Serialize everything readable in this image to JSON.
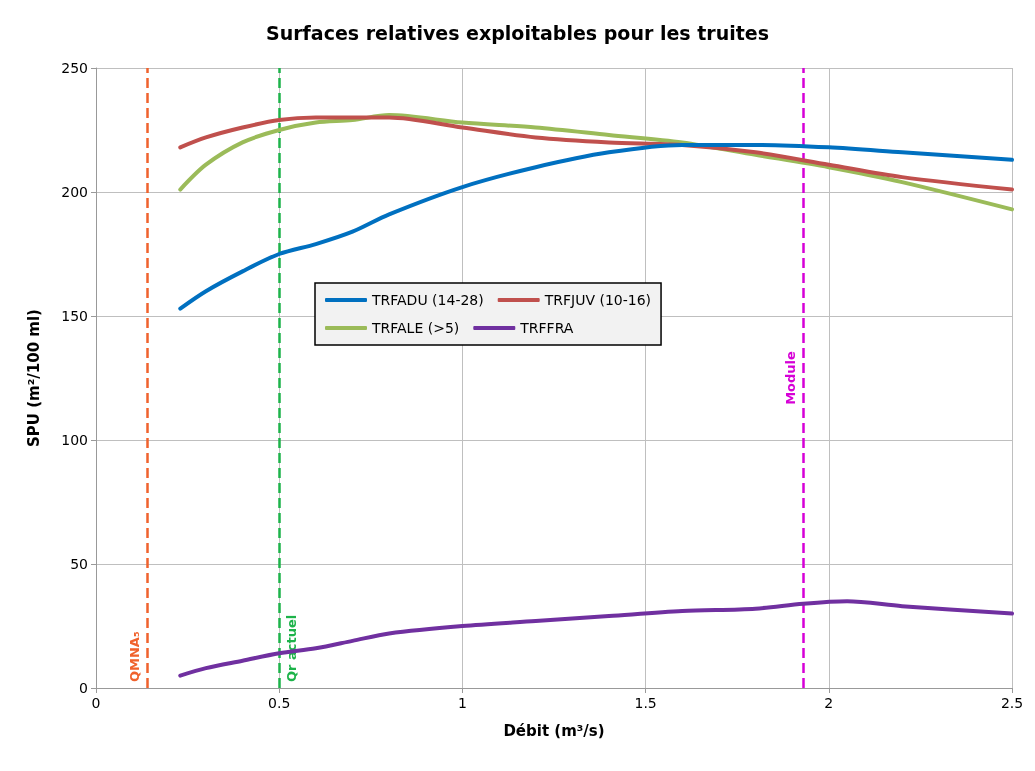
{
  "chart_data": {
    "type": "line",
    "title": "Surfaces relatives exploitables pour les truites",
    "xlabel": "Débit (m³/s)",
    "ylabel": "SPU (m²/100 ml)",
    "xlim": [
      0,
      2.5
    ],
    "xticks": [
      0,
      0.5,
      1,
      1.5,
      2,
      2.5
    ],
    "ylim": [
      0,
      250
    ],
    "yticks": [
      0,
      50,
      100,
      150,
      200,
      250
    ],
    "grid": true,
    "legend": "center",
    "marker": "none",
    "line_style": "solid",
    "series": [
      {
        "name": "TRFADU (14-28)",
        "color": "#0070c0",
        "x": [
          0.23,
          0.3,
          0.4,
          0.5,
          0.6,
          0.7,
          0.8,
          1.0,
          1.2,
          1.4,
          1.6,
          1.8,
          2.0,
          2.2,
          2.5
        ],
        "values": [
          153,
          160,
          168,
          175,
          179,
          184,
          191,
          202,
          210,
          216,
          219,
          219,
          218,
          216,
          213
        ]
      },
      {
        "name": "TRFJUV (10-16)",
        "color": "#c0504d",
        "x": [
          0.23,
          0.3,
          0.4,
          0.5,
          0.6,
          0.7,
          0.8,
          1.0,
          1.2,
          1.4,
          1.6,
          1.8,
          2.0,
          2.2,
          2.5
        ],
        "values": [
          218,
          222,
          226,
          229,
          230,
          230,
          230,
          226,
          222,
          220,
          219,
          216,
          211,
          206,
          201
        ]
      },
      {
        "name": "TRFALE (>5)",
        "color": "#9bbb59",
        "x": [
          0.23,
          0.3,
          0.4,
          0.5,
          0.6,
          0.7,
          0.8,
          1.0,
          1.2,
          1.4,
          1.6,
          1.8,
          2.0,
          2.2,
          2.5
        ],
        "values": [
          201,
          211,
          220,
          225,
          228,
          229,
          231,
          228,
          226,
          223,
          220,
          215,
          210,
          204,
          193
        ]
      },
      {
        "name": "TRFFRA",
        "color": "#7030a0",
        "x": [
          0.23,
          0.3,
          0.4,
          0.5,
          0.6,
          0.7,
          0.8,
          1.0,
          1.2,
          1.4,
          1.6,
          1.8,
          1.93,
          2.05,
          2.2,
          2.5
        ],
        "values": [
          5,
          8,
          11,
          14,
          16,
          19,
          22,
          25,
          27,
          29,
          31,
          32,
          34,
          35,
          33,
          30
        ]
      }
    ],
    "ref_lines": [
      {
        "axis": "x",
        "value": 0.14,
        "label": "QMNA₅",
        "color": "#f0622d",
        "line_style": "dashed"
      },
      {
        "axis": "x",
        "value": 0.5,
        "label": "Qr actuel",
        "color": "#1db34a",
        "line_style": "dashed"
      },
      {
        "axis": "x",
        "value": 1.93,
        "label": "Module",
        "color": "#d600d6",
        "line_style": "dashed"
      }
    ]
  }
}
